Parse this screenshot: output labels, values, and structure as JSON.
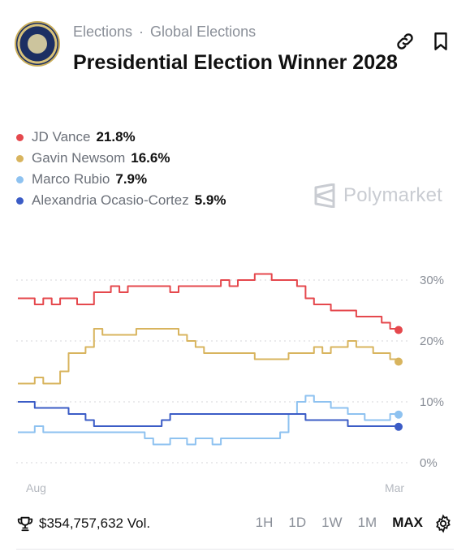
{
  "header": {
    "breadcrumb": [
      "Elections",
      "Global Elections"
    ],
    "breadcrumb_separator": "·",
    "title": "Presidential Election Winner 2028",
    "icons": [
      "link-icon",
      "bookmark-icon"
    ]
  },
  "legend": [
    {
      "name": "JD Vance",
      "value": "21.8%",
      "color": "#e5484d"
    },
    {
      "name": "Gavin Newsom",
      "value": "16.6%",
      "color": "#d8b45e"
    },
    {
      "name": "Marco Rubio",
      "value": "7.9%",
      "color": "#8ec2f0"
    },
    {
      "name": "Alexandria Ocasio-Cortez",
      "value": "5.9%",
      "color": "#3b5cc6"
    }
  ],
  "brand": "Polymarket",
  "chart_data": {
    "type": "line",
    "x_labels": [
      "Aug",
      "Mar"
    ],
    "y_ticks": [
      "30%",
      "20%",
      "10%",
      "0%"
    ],
    "ylim": [
      0,
      30
    ],
    "grid": true,
    "series": [
      {
        "name": "JD Vance",
        "color": "#e5484d",
        "values": [
          27,
          27,
          26,
          27,
          26,
          27,
          27,
          26,
          26,
          28,
          28,
          29,
          28,
          29,
          29,
          29,
          29,
          29,
          28,
          29,
          29,
          29,
          29,
          29,
          30,
          29,
          30,
          30,
          31,
          31,
          30,
          30,
          30,
          29,
          27,
          26,
          26,
          25,
          25,
          25,
          24,
          24,
          24,
          23,
          22,
          21.8
        ]
      },
      {
        "name": "Gavin Newsom",
        "color": "#d8b45e",
        "values": [
          13,
          13,
          14,
          13,
          13,
          15,
          18,
          18,
          19,
          22,
          21,
          21,
          21,
          21,
          22,
          22,
          22,
          22,
          22,
          21,
          20,
          19,
          18,
          18,
          18,
          18,
          18,
          18,
          17,
          17,
          17,
          17,
          18,
          18,
          18,
          19,
          18,
          19,
          19,
          20,
          19,
          19,
          18,
          18,
          17,
          16.6
        ]
      },
      {
        "name": "Marco Rubio",
        "color": "#8ec2f0",
        "values": [
          5,
          5,
          6,
          5,
          5,
          5,
          5,
          5,
          5,
          5,
          5,
          5,
          5,
          5,
          5,
          4,
          3,
          3,
          4,
          4,
          3,
          4,
          4,
          3,
          4,
          4,
          4,
          4,
          4,
          4,
          4,
          5,
          8,
          10,
          11,
          10,
          10,
          9,
          9,
          8,
          8,
          7,
          7,
          7,
          8,
          7.9
        ]
      },
      {
        "name": "Alexandria Ocasio-Cortez",
        "color": "#3b5cc6",
        "values": [
          10,
          10,
          9,
          9,
          9,
          9,
          8,
          8,
          7,
          6,
          6,
          6,
          6,
          6,
          6,
          6,
          6,
          7,
          8,
          8,
          8,
          8,
          8,
          8,
          8,
          8,
          8,
          8,
          8,
          8,
          8,
          8,
          8,
          8,
          7,
          7,
          7,
          7,
          7,
          6,
          6,
          6,
          6,
          6,
          6,
          5.9
        ]
      }
    ]
  },
  "footer": {
    "volume": "$354,757,632 Vol.",
    "ranges": [
      "1H",
      "1D",
      "1W",
      "1M",
      "MAX"
    ],
    "active_range": "MAX",
    "icons": [
      "trophy-icon",
      "gear-icon"
    ]
  }
}
